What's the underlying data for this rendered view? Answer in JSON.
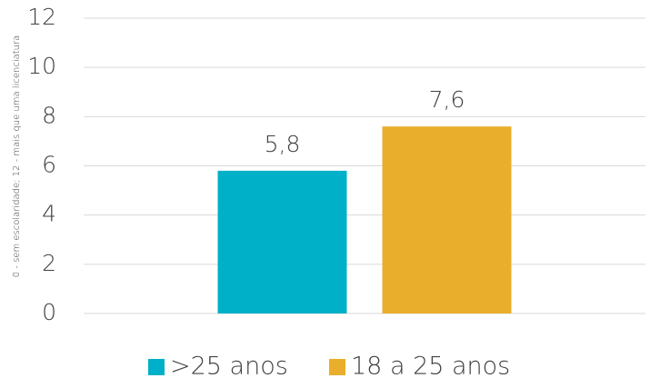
{
  "chart_data": {
    "type": "bar",
    "y_label": "0 - sem escolaridade; 12 -  mais que uma licenciatura",
    "categories": [
      null
    ],
    "series": [
      {
        "name": ">25 anos",
        "color": "#00b0c8",
        "values": [
          5.8
        ],
        "value_labels": [
          "5,8"
        ]
      },
      {
        "name": "18 a 25 anos",
        "color": "#e9ae2b",
        "values": [
          7.6
        ],
        "value_labels": [
          "7,6"
        ]
      }
    ],
    "ylim": [
      0,
      12
    ],
    "yticks": [
      0,
      2,
      4,
      6,
      8,
      10,
      12
    ],
    "grid": true,
    "legend": "bottom"
  }
}
